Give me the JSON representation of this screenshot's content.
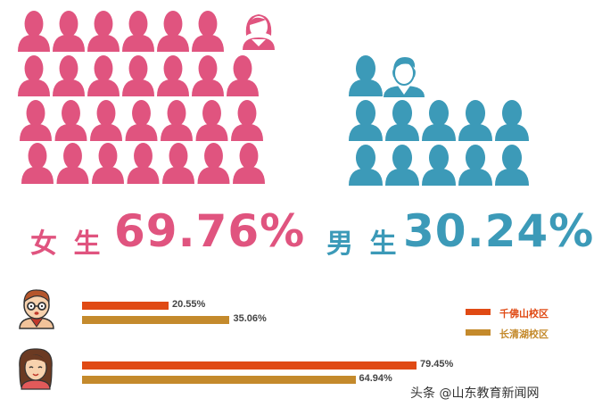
{
  "colors": {
    "female": "#e0547f",
    "male": "#3c9ab8",
    "campus1": "#e04a14",
    "campus2": "#c48a2c",
    "text_dark": "#444444"
  },
  "gender": {
    "female_label": "女 生",
    "female_value": "69.76%",
    "male_label": "男 生",
    "male_value": "30.24%"
  },
  "legend": {
    "campus1": "千佛山校区",
    "campus2": "长清湖校区"
  },
  "watermark": "头条 @山东教育新闻网",
  "chart_data": [
    {
      "type": "pictograph",
      "categories": [
        "女 生",
        "男 生"
      ],
      "values": [
        69.76,
        30.24
      ],
      "unit": "%"
    },
    {
      "type": "bar",
      "orientation": "horizontal",
      "categories": [
        "male-avatar",
        "female-avatar"
      ],
      "series": [
        {
          "name": "千佛山校区",
          "values": [
            20.55,
            79.45
          ]
        },
        {
          "name": "长清湖校区",
          "values": [
            35.06,
            64.94
          ]
        }
      ],
      "xlim": [
        0,
        100
      ]
    }
  ]
}
